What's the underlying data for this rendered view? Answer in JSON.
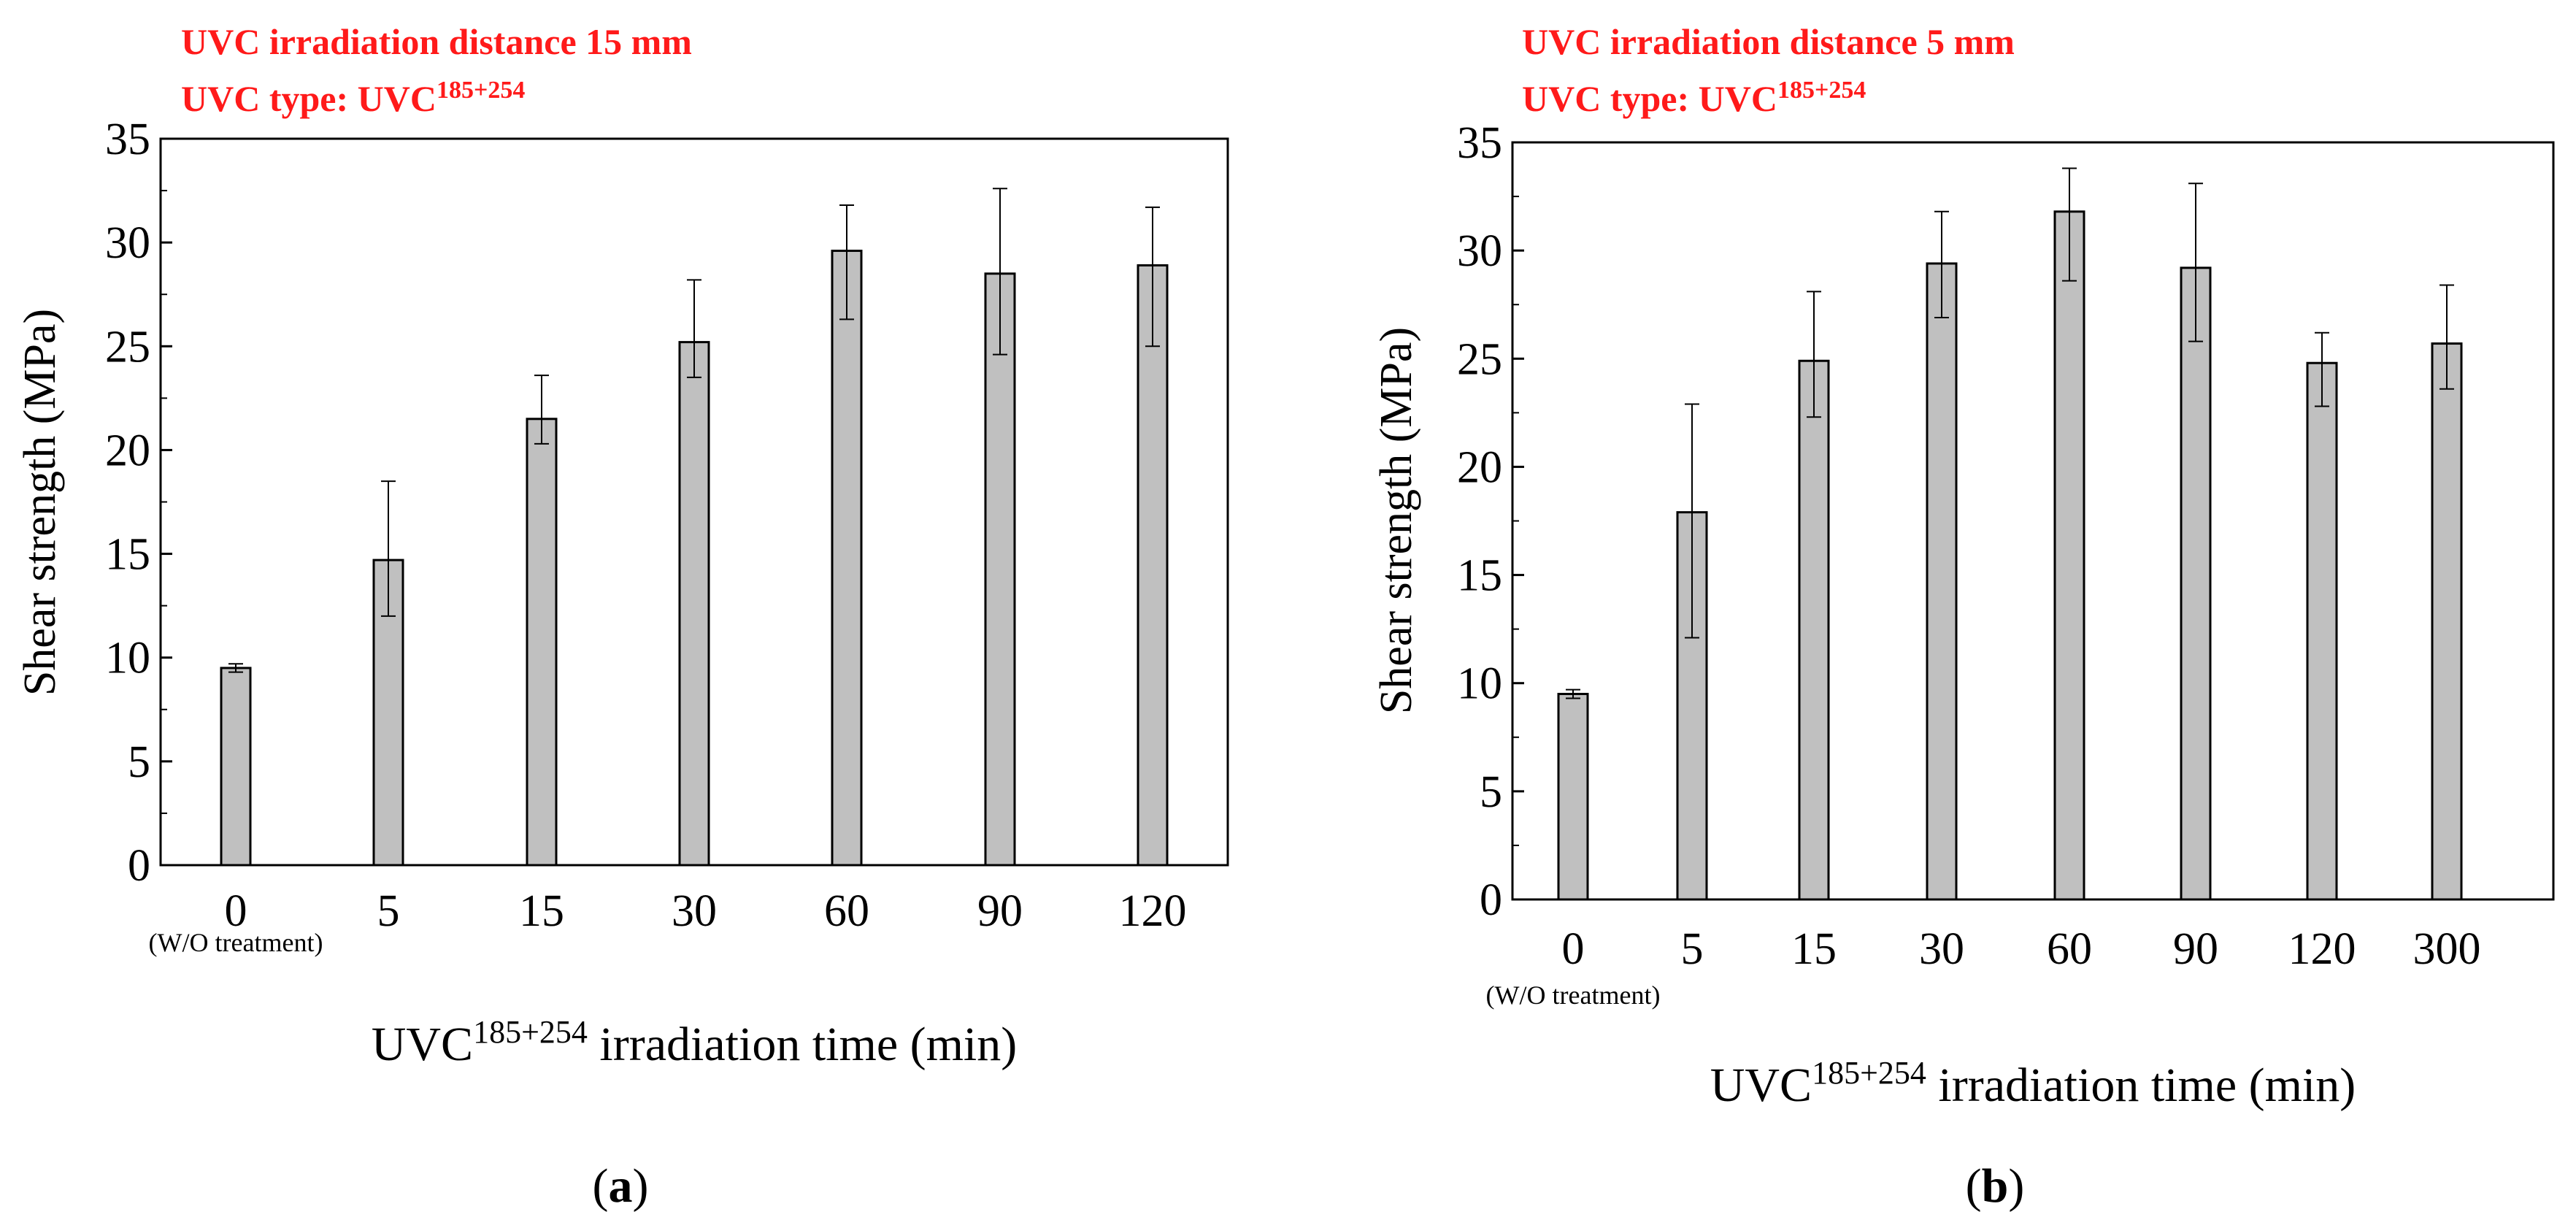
{
  "colors": {
    "title": "#ff1a1a",
    "bar": "#c0c0c0",
    "axis": "#000000",
    "text": "#000000"
  },
  "chart_data": [
    {
      "type": "bar",
      "panel_label": "a",
      "title_line1": "UVC irradiation distance 15 mm",
      "title_line2_prefix": "UVC type: UVC",
      "title_line2_sup": "185+254",
      "xlabel_prefix": "UVC",
      "xlabel_sup": "185+254",
      "xlabel_suffix": " irradiation time (min)",
      "ylabel": "Shear strength (MPa)",
      "ylim": [
        0,
        35
      ],
      "yticks": [
        0,
        5,
        10,
        15,
        20,
        25,
        30,
        35
      ],
      "categories": [
        "0",
        "5",
        "15",
        "30",
        "60",
        "90",
        "120"
      ],
      "first_category_note": "(W/O treatment)",
      "values": [
        9.5,
        14.7,
        21.5,
        25.2,
        29.6,
        28.5,
        28.9
      ],
      "err_upper": [
        9.7,
        18.5,
        23.6,
        28.2,
        31.8,
        32.6,
        31.7
      ],
      "err_lower": [
        9.3,
        12.0,
        20.3,
        23.5,
        26.3,
        24.6,
        25.0
      ]
    },
    {
      "type": "bar",
      "panel_label": "b",
      "title_line1": "UVC irradiation distance 5 mm",
      "title_line2_prefix": "UVC type: UVC",
      "title_line2_sup": "185+254",
      "xlabel_prefix": "UVC",
      "xlabel_sup": "185+254",
      "xlabel_suffix": " irradiation time (min)",
      "ylabel": "Shear strength (MPa)",
      "ylim": [
        0,
        35
      ],
      "yticks": [
        0,
        5,
        10,
        15,
        20,
        25,
        30,
        35
      ],
      "categories": [
        "0",
        "5",
        "15",
        "30",
        "60",
        "90",
        "120",
        "300"
      ],
      "first_category_note": "(W/O treatment)",
      "values": [
        9.5,
        17.9,
        24.9,
        29.4,
        31.8,
        29.2,
        24.8,
        25.7
      ],
      "err_upper": [
        9.7,
        22.9,
        28.1,
        31.8,
        33.8,
        33.1,
        26.2,
        28.4
      ],
      "err_lower": [
        9.3,
        12.1,
        22.3,
        26.9,
        28.6,
        25.8,
        22.8,
        23.6
      ]
    }
  ]
}
